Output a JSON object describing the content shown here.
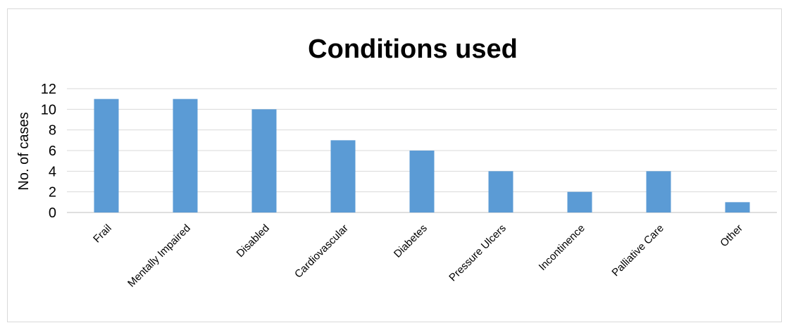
{
  "chart_data": {
    "type": "bar",
    "title": "Conditions used",
    "xlabel": "",
    "ylabel": "No. of cases",
    "categories": [
      "Frail",
      "Mentally Impaired",
      "Disabled",
      "Cardiovascular",
      "Diabetes",
      "Pressure Ulcers",
      "Incontinence",
      "Palliative Care",
      "Other"
    ],
    "values": [
      11,
      11,
      10,
      7,
      6,
      4,
      2,
      4,
      1
    ],
    "ylim": [
      0,
      12
    ],
    "yticks": [
      "0",
      "2",
      "4",
      "6",
      "8",
      "10",
      "12"
    ],
    "grid": true,
    "legend": "none",
    "bar_color": "#5b9bd5"
  }
}
